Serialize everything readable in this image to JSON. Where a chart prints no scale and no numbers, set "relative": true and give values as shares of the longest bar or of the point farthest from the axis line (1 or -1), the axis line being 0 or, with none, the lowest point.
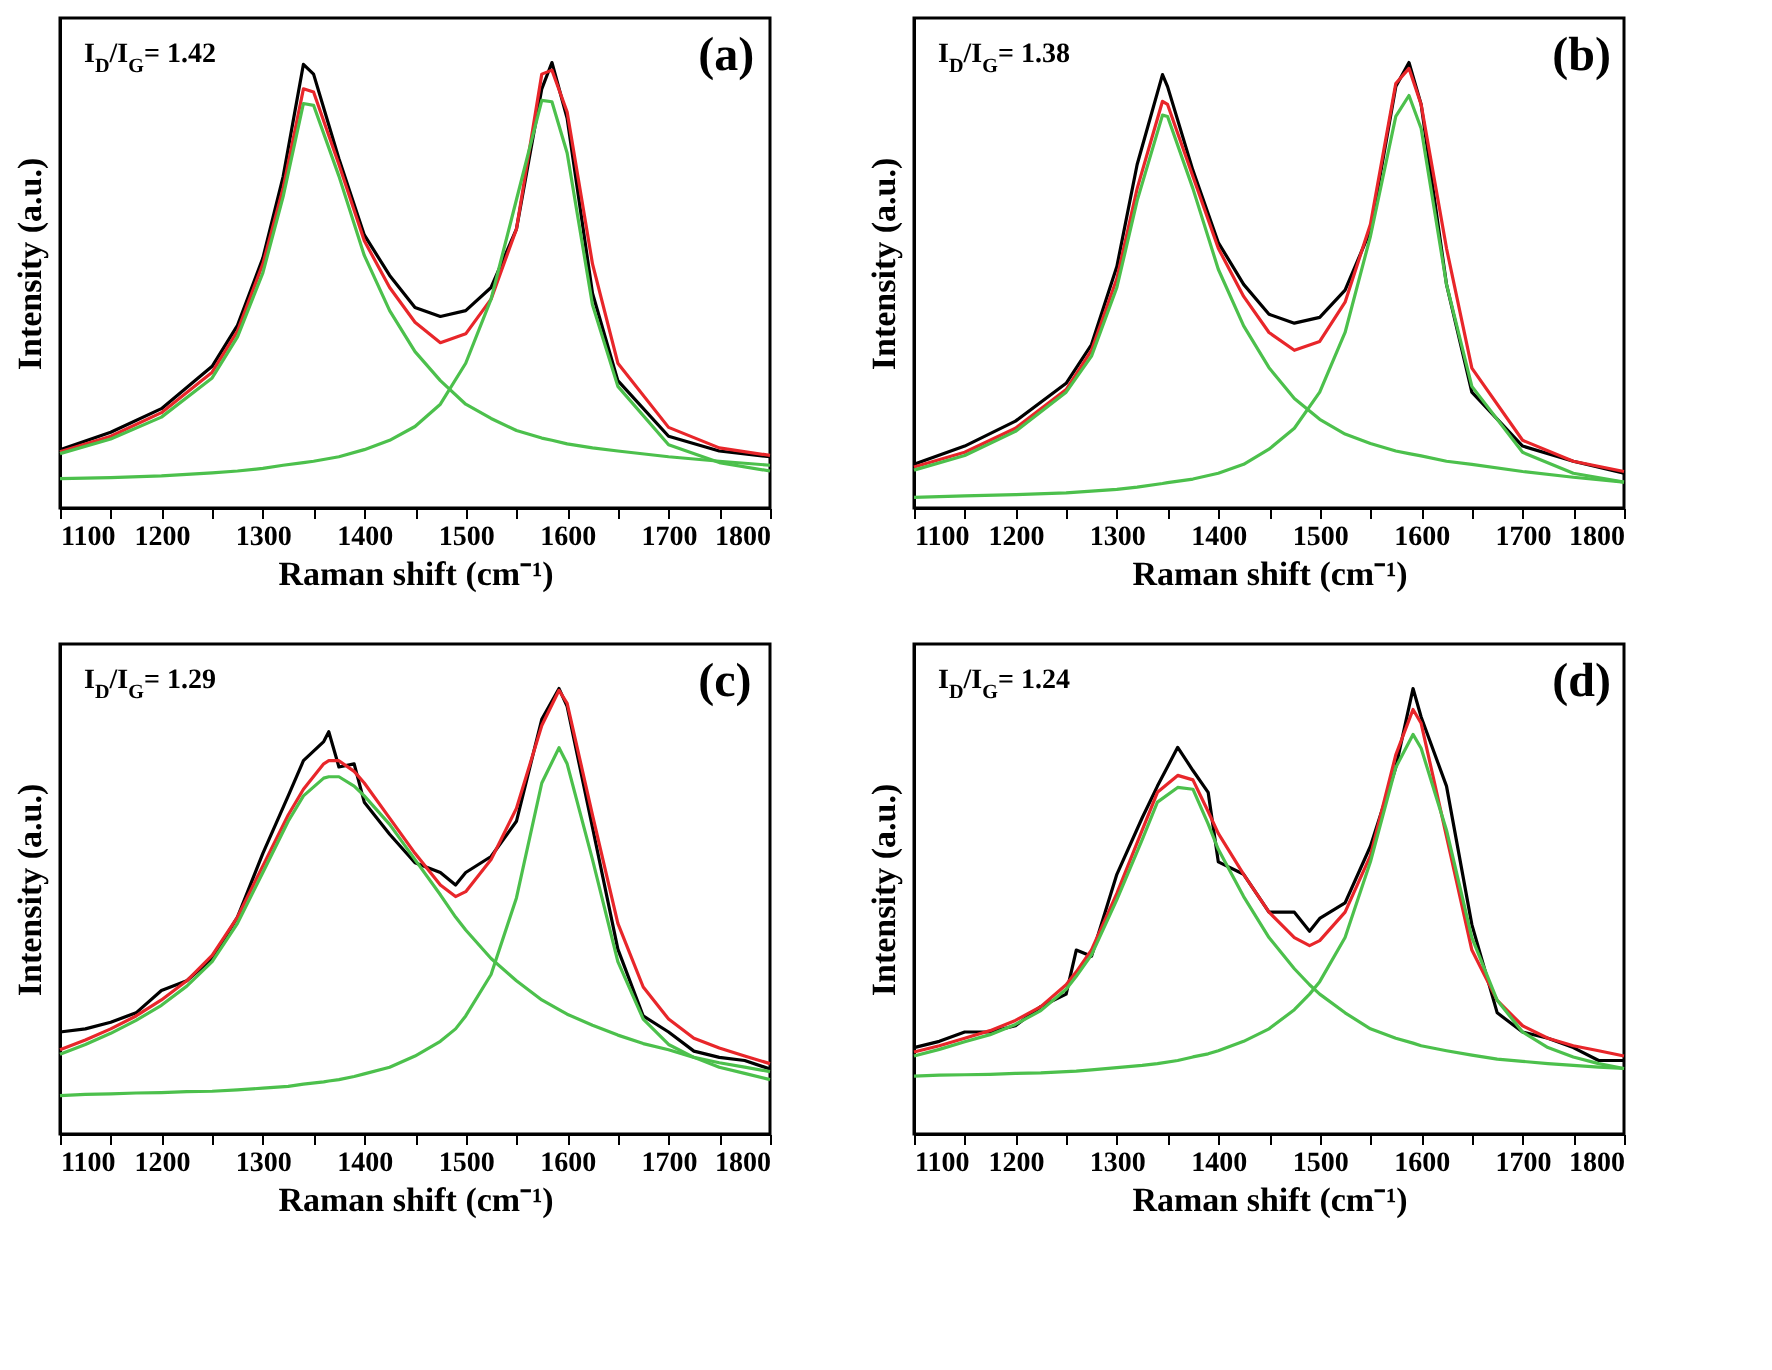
{
  "chart_data": [
    {
      "type": "line",
      "relative": true,
      "xlabel": "Raman shift (cm⁻¹)",
      "ylabel": "Intensity (a.u.)",
      "xlim": [
        1100,
        1800
      ],
      "xticks": [
        1100,
        {
          "value": 1150,
          "label": null
        },
        1200,
        {
          "value": 1250,
          "label": null
        },
        1300,
        {
          "value": 1350,
          "label": null
        },
        1400,
        {
          "value": 1450,
          "label": null
        },
        1500,
        {
          "value": 1550,
          "label": null
        },
        1600,
        {
          "value": 1650,
          "label": null
        },
        1700,
        {
          "value": 1750,
          "label": null
        },
        1800
      ],
      "grid": false,
      "legend": false,
      "annotations": [
        "I$_{D}$/I$_{G}$= 1.42",
        "(a)"
      ],
      "x": [
        1100,
        1150,
        1200,
        1250,
        1275,
        1300,
        1320,
        1340,
        1350,
        1375,
        1400,
        1425,
        1450,
        1475,
        1500,
        1525,
        1550,
        1575,
        1585,
        1600,
        1625,
        1650,
        1700,
        1750,
        1800
      ],
      "series": [
        {
          "color": "#000000",
          "values": [
            0.131,
            0.17,
            0.223,
            0.318,
            0.41,
            0.561,
            0.744,
            0.996,
            0.974,
            0.784,
            0.613,
            0.522,
            0.45,
            0.43,
            0.443,
            0.495,
            0.626,
            0.941,
            1,
            0.875,
            0.482,
            0.286,
            0.161,
            0.128,
            0.115
          ]
        },
        {
          "color": "#e8262a",
          "values": [
            0.126,
            0.161,
            0.214,
            0.305,
            0.397,
            0.548,
            0.718,
            0.941,
            0.934,
            0.771,
            0.6,
            0.495,
            0.417,
            0.371,
            0.391,
            0.469,
            0.626,
            0.974,
            0.983,
            0.889,
            0.548,
            0.325,
            0.181,
            0.135,
            0.118
          ]
        },
        {
          "color": "#4cc04c",
          "values": [
            0.122,
            0.155,
            0.204,
            0.292,
            0.384,
            0.528,
            0.699,
            0.908,
            0.904,
            0.745,
            0.567,
            0.443,
            0.351,
            0.286,
            0.233,
            0.201,
            0.174,
            0.157,
            0.152,
            0.144,
            0.135,
            0.128,
            0.115,
            0.105,
            0.096
          ]
        },
        {
          "color": "#4cc04c",
          "values": [
            0.066,
            0.068,
            0.072,
            0.079,
            0.083,
            0.089,
            0.096,
            0.102,
            0.105,
            0.115,
            0.131,
            0.152,
            0.183,
            0.233,
            0.325,
            0.469,
            0.692,
            0.915,
            0.912,
            0.797,
            0.456,
            0.273,
            0.142,
            0.102,
            0.083
          ]
        }
      ]
    },
    {
      "type": "line",
      "relative": true,
      "xlabel": "Raman shift (cm⁻¹)",
      "ylabel": "Intensity (a.u.)",
      "xlim": [
        1100,
        1800
      ],
      "xticks": [
        1100,
        {
          "value": 1150,
          "label": null
        },
        1200,
        {
          "value": 1250,
          "label": null
        },
        1300,
        {
          "value": 1350,
          "label": null
        },
        1400,
        {
          "value": 1450,
          "label": null
        },
        1500,
        {
          "value": 1550,
          "label": null
        },
        1600,
        {
          "value": 1650,
          "label": null
        },
        1700,
        {
          "value": 1750,
          "label": null
        },
        1800
      ],
      "grid": false,
      "legend": false,
      "annotations": [
        "I$_{D}$/I$_{G}$= 1.38",
        "(b)"
      ],
      "x": [
        1100,
        1150,
        1200,
        1250,
        1275,
        1300,
        1320,
        1345,
        1350,
        1375,
        1400,
        1425,
        1450,
        1475,
        1500,
        1525,
        1550,
        1575,
        1588,
        1600,
        1625,
        1650,
        1700,
        1750,
        1800
      ],
      "series": [
        {
          "color": "#000000",
          "values": [
            0.098,
            0.139,
            0.195,
            0.28,
            0.367,
            0.542,
            0.771,
            0.973,
            0.946,
            0.758,
            0.596,
            0.502,
            0.435,
            0.415,
            0.428,
            0.489,
            0.623,
            0.946,
            1,
            0.906,
            0.502,
            0.26,
            0.139,
            0.105,
            0.078
          ]
        },
        {
          "color": "#e8262a",
          "values": [
            0.092,
            0.125,
            0.179,
            0.266,
            0.354,
            0.515,
            0.717,
            0.913,
            0.906,
            0.744,
            0.583,
            0.475,
            0.394,
            0.354,
            0.374,
            0.462,
            0.637,
            0.953,
            0.987,
            0.906,
            0.583,
            0.314,
            0.152,
            0.105,
            0.082
          ]
        },
        {
          "color": "#4cc04c",
          "values": [
            0.085,
            0.118,
            0.172,
            0.26,
            0.341,
            0.495,
            0.69,
            0.882,
            0.879,
            0.717,
            0.536,
            0.409,
            0.315,
            0.246,
            0.199,
            0.166,
            0.145,
            0.128,
            0.122,
            0.117,
            0.105,
            0.098,
            0.082,
            0.069,
            0.058
          ]
        },
        {
          "color": "#4cc04c",
          "values": [
            0.024,
            0.027,
            0.03,
            0.034,
            0.038,
            0.042,
            0.047,
            0.055,
            0.057,
            0.065,
            0.078,
            0.098,
            0.132,
            0.179,
            0.26,
            0.394,
            0.61,
            0.879,
            0.926,
            0.852,
            0.502,
            0.273,
            0.125,
            0.078,
            0.058
          ]
        }
      ]
    },
    {
      "type": "line",
      "relative": true,
      "xlabel": "Raman shift (cm⁻¹)",
      "ylabel": "Intensity (a.u.)",
      "xlim": [
        1100,
        1800
      ],
      "xticks": [
        1100,
        {
          "value": 1150,
          "label": null
        },
        1200,
        {
          "value": 1250,
          "label": null
        },
        1300,
        {
          "value": 1350,
          "label": null
        },
        1400,
        {
          "value": 1450,
          "label": null
        },
        1500,
        {
          "value": 1550,
          "label": null
        },
        1600,
        {
          "value": 1650,
          "label": null
        },
        1700,
        {
          "value": 1750,
          "label": null
        },
        1800
      ],
      "grid": false,
      "legend": false,
      "annotations": [
        "I$_{D}$/I$_{G}$= 1.29",
        "(c)"
      ],
      "x": [
        1100,
        1125,
        1150,
        1175,
        1200,
        1225,
        1250,
        1275,
        1300,
        1325,
        1340,
        1360,
        1365,
        1375,
        1390,
        1400,
        1425,
        1450,
        1475,
        1490,
        1500,
        1525,
        1550,
        1575,
        1592,
        1600,
        1625,
        1650,
        1675,
        1700,
        1725,
        1750,
        1775,
        1800
      ],
      "series": [
        {
          "color": "#000000",
          "values": [
            0.229,
            0.236,
            0.251,
            0.272,
            0.322,
            0.344,
            0.394,
            0.487,
            0.63,
            0.759,
            0.838,
            0.881,
            0.903,
            0.824,
            0.831,
            0.745,
            0.673,
            0.609,
            0.587,
            0.559,
            0.587,
            0.623,
            0.702,
            0.931,
            1,
            0.96,
            0.688,
            0.415,
            0.265,
            0.229,
            0.186,
            0.172,
            0.165,
            0.146
          ]
        },
        {
          "color": "#e8262a",
          "values": [
            0.189,
            0.211,
            0.236,
            0.265,
            0.301,
            0.344,
            0.401,
            0.487,
            0.602,
            0.716,
            0.774,
            0.831,
            0.838,
            0.838,
            0.814,
            0.788,
            0.709,
            0.63,
            0.559,
            0.533,
            0.544,
            0.616,
            0.731,
            0.917,
            0.996,
            0.967,
            0.716,
            0.473,
            0.33,
            0.258,
            0.215,
            0.193,
            0.175,
            0.158
          ]
        },
        {
          "color": "#4cc04c",
          "values": [
            0.179,
            0.201,
            0.226,
            0.255,
            0.289,
            0.332,
            0.387,
            0.473,
            0.587,
            0.702,
            0.759,
            0.799,
            0.802,
            0.802,
            0.781,
            0.759,
            0.695,
            0.616,
            0.537,
            0.487,
            0.458,
            0.394,
            0.344,
            0.301,
            0.279,
            0.269,
            0.244,
            0.222,
            0.203,
            0.189,
            0.172,
            0.16,
            0.15,
            0.14
          ]
        },
        {
          "color": "#4cc04c",
          "values": [
            0.086,
            0.089,
            0.09,
            0.092,
            0.093,
            0.095,
            0.096,
            0.099,
            0.103,
            0.107,
            0.112,
            0.117,
            0.119,
            0.122,
            0.129,
            0.135,
            0.15,
            0.175,
            0.208,
            0.236,
            0.265,
            0.358,
            0.53,
            0.788,
            0.867,
            0.831,
            0.616,
            0.387,
            0.258,
            0.201,
            0.172,
            0.15,
            0.136,
            0.122
          ]
        }
      ]
    },
    {
      "type": "line",
      "relative": true,
      "xlabel": "Raman shift (cm⁻¹)",
      "ylabel": "Intensity (a.u.)",
      "xlim": [
        1100,
        1800
      ],
      "xticks": [
        1100,
        {
          "value": 1150,
          "label": null
        },
        1200,
        {
          "value": 1250,
          "label": null
        },
        1300,
        {
          "value": 1350,
          "label": null
        },
        1400,
        {
          "value": 1450,
          "label": null
        },
        1500,
        {
          "value": 1550,
          "label": null
        },
        1600,
        {
          "value": 1650,
          "label": null
        },
        1700,
        {
          "value": 1750,
          "label": null
        },
        1800
      ],
      "grid": false,
      "legend": false,
      "annotations": [
        "I$_{D}$/I$_{G}$= 1.24",
        "(d)"
      ],
      "x": [
        1100,
        1125,
        1150,
        1175,
        1200,
        1225,
        1250,
        1260,
        1275,
        1300,
        1325,
        1340,
        1360,
        1375,
        1390,
        1400,
        1425,
        1450,
        1475,
        1490,
        1500,
        1525,
        1550,
        1575,
        1592,
        1600,
        1625,
        1650,
        1675,
        1700,
        1725,
        1750,
        1775,
        1800
      ],
      "series": [
        {
          "color": "#000000",
          "values": [
            0.194,
            0.208,
            0.229,
            0.229,
            0.243,
            0.286,
            0.314,
            0.413,
            0.399,
            0.583,
            0.71,
            0.781,
            0.868,
            0.816,
            0.767,
            0.611,
            0.583,
            0.498,
            0.498,
            0.455,
            0.484,
            0.519,
            0.646,
            0.823,
            1,
            0.936,
            0.781,
            0.47,
            0.272,
            0.229,
            0.215,
            0.194,
            0.165,
            0.165
          ]
        },
        {
          "color": "#e8262a",
          "values": [
            0.184,
            0.198,
            0.215,
            0.232,
            0.255,
            0.286,
            0.335,
            0.364,
            0.413,
            0.54,
            0.682,
            0.767,
            0.805,
            0.795,
            0.724,
            0.675,
            0.583,
            0.498,
            0.441,
            0.423,
            0.434,
            0.498,
            0.625,
            0.851,
            0.953,
            0.922,
            0.668,
            0.413,
            0.3,
            0.243,
            0.215,
            0.198,
            0.187,
            0.175
          ]
        },
        {
          "color": "#4cc04c",
          "values": [
            0.175,
            0.19,
            0.207,
            0.223,
            0.246,
            0.277,
            0.325,
            0.354,
            0.402,
            0.526,
            0.661,
            0.745,
            0.778,
            0.774,
            0.696,
            0.639,
            0.533,
            0.441,
            0.371,
            0.335,
            0.314,
            0.272,
            0.236,
            0.215,
            0.204,
            0.198,
            0.187,
            0.177,
            0.168,
            0.163,
            0.158,
            0.154,
            0.15,
            0.147
          ]
        },
        {
          "color": "#4cc04c",
          "values": [
            0.13,
            0.132,
            0.133,
            0.134,
            0.136,
            0.137,
            0.14,
            0.141,
            0.144,
            0.149,
            0.154,
            0.158,
            0.165,
            0.173,
            0.18,
            0.187,
            0.208,
            0.236,
            0.279,
            0.314,
            0.342,
            0.441,
            0.611,
            0.823,
            0.897,
            0.866,
            0.682,
            0.441,
            0.3,
            0.229,
            0.194,
            0.173,
            0.158,
            0.147
          ]
        }
      ]
    }
  ]
}
